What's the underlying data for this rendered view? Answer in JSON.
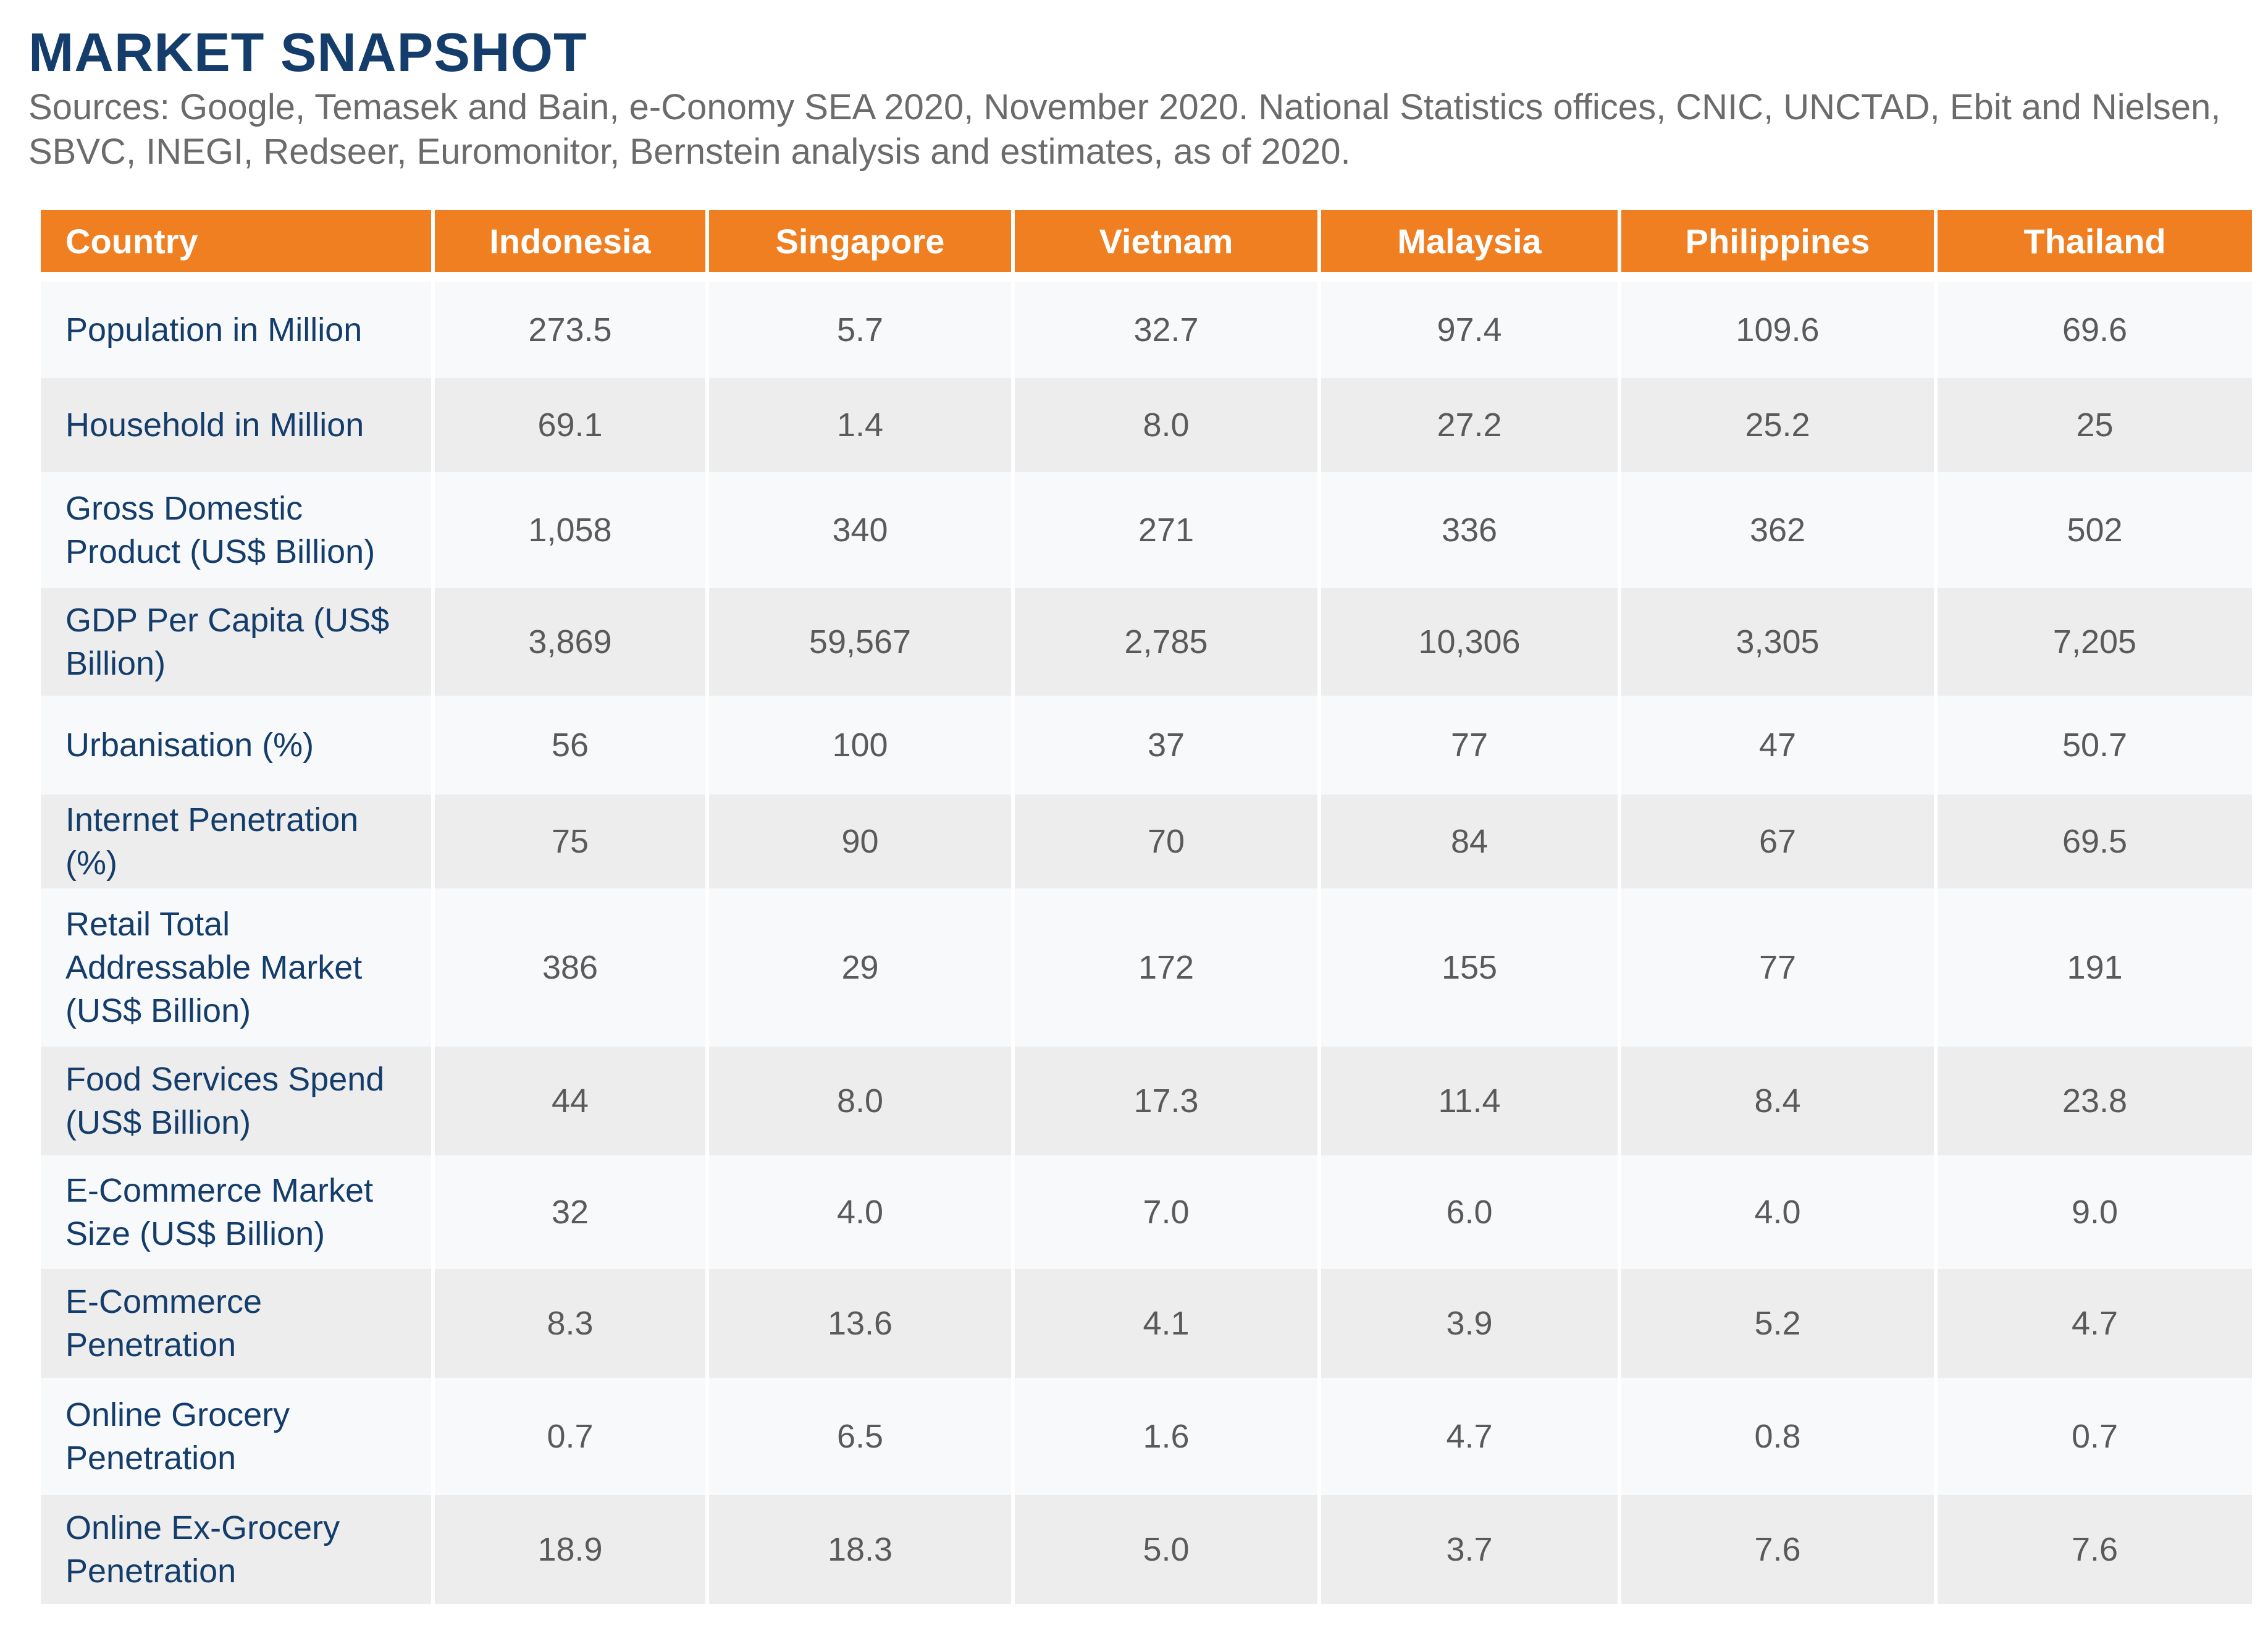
{
  "title": "MARKET SNAPSHOT",
  "sources": "Sources: Google, Temasek and Bain, e-Conomy SEA 2020, November 2020. National Statistics offices, CNIC, UNCTAD, Ebit and Nielsen, SBVC, INEGI, Redseer, Euromonitor, Bernstein analysis and estimates, as of 2020.",
  "table": {
    "headers": [
      "Country",
      "Indonesia",
      "Singapore",
      "Vietnam",
      "Malaysia",
      "Philippines",
      "Thailand"
    ],
    "rows": [
      {
        "label": "Population in Million",
        "values": [
          "273.5",
          "5.7",
          "32.7",
          "97.4",
          "109.6",
          "69.6"
        ]
      },
      {
        "label": "Household in Million",
        "values": [
          "69.1",
          "1.4",
          "8.0",
          "27.2",
          "25.2",
          "25"
        ]
      },
      {
        "label": "Gross Domestic Product (US$ Billion)",
        "values": [
          "1,058",
          "340",
          "271",
          "336",
          "362",
          "502"
        ]
      },
      {
        "label": "GDP Per Capita (US$ Billion)",
        "values": [
          "3,869",
          "59,567",
          "2,785",
          "10,306",
          "3,305",
          "7,205"
        ]
      },
      {
        "label": "Urbanisation (%)",
        "values": [
          "56",
          "100",
          "37",
          "77",
          "47",
          "50.7"
        ]
      },
      {
        "label": "Internet Penetration (%)",
        "values": [
          "75",
          "90",
          "70",
          "84",
          "67",
          "69.5"
        ]
      },
      {
        "label": "Retail Total Addressable Market (US$ Billion)",
        "values": [
          "386",
          "29",
          "172",
          "155",
          "77",
          "191"
        ]
      },
      {
        "label": "Food Services Spend (US$ Billion)",
        "values": [
          "44",
          "8.0",
          "17.3",
          "11.4",
          "8.4",
          "23.8"
        ]
      },
      {
        "label": "E-Commerce Market Size (US$ Billion)",
        "values": [
          "32",
          "4.0",
          "7.0",
          "6.0",
          "4.0",
          "9.0"
        ]
      },
      {
        "label": "E-Commerce Penetration",
        "values": [
          "8.3",
          "13.6",
          "4.1",
          "3.9",
          "5.2",
          "4.7"
        ]
      },
      {
        "label": "Online Grocery Penetration",
        "values": [
          "0.7",
          "6.5",
          "1.6",
          "4.7",
          "0.8",
          "0.7"
        ]
      },
      {
        "label": "Online Ex-Grocery Penetration",
        "values": [
          "18.9",
          "18.3",
          "5.0",
          "3.7",
          "7.6",
          "7.6"
        ]
      }
    ]
  },
  "colors": {
    "title": "#143d6b",
    "header_background": "#f07f22",
    "header_text": "#ffffff",
    "row_label": "#143d6b",
    "cell_text": "#5a5a5a",
    "row_light": "#f8f9fb",
    "row_dark": "#ededed"
  }
}
